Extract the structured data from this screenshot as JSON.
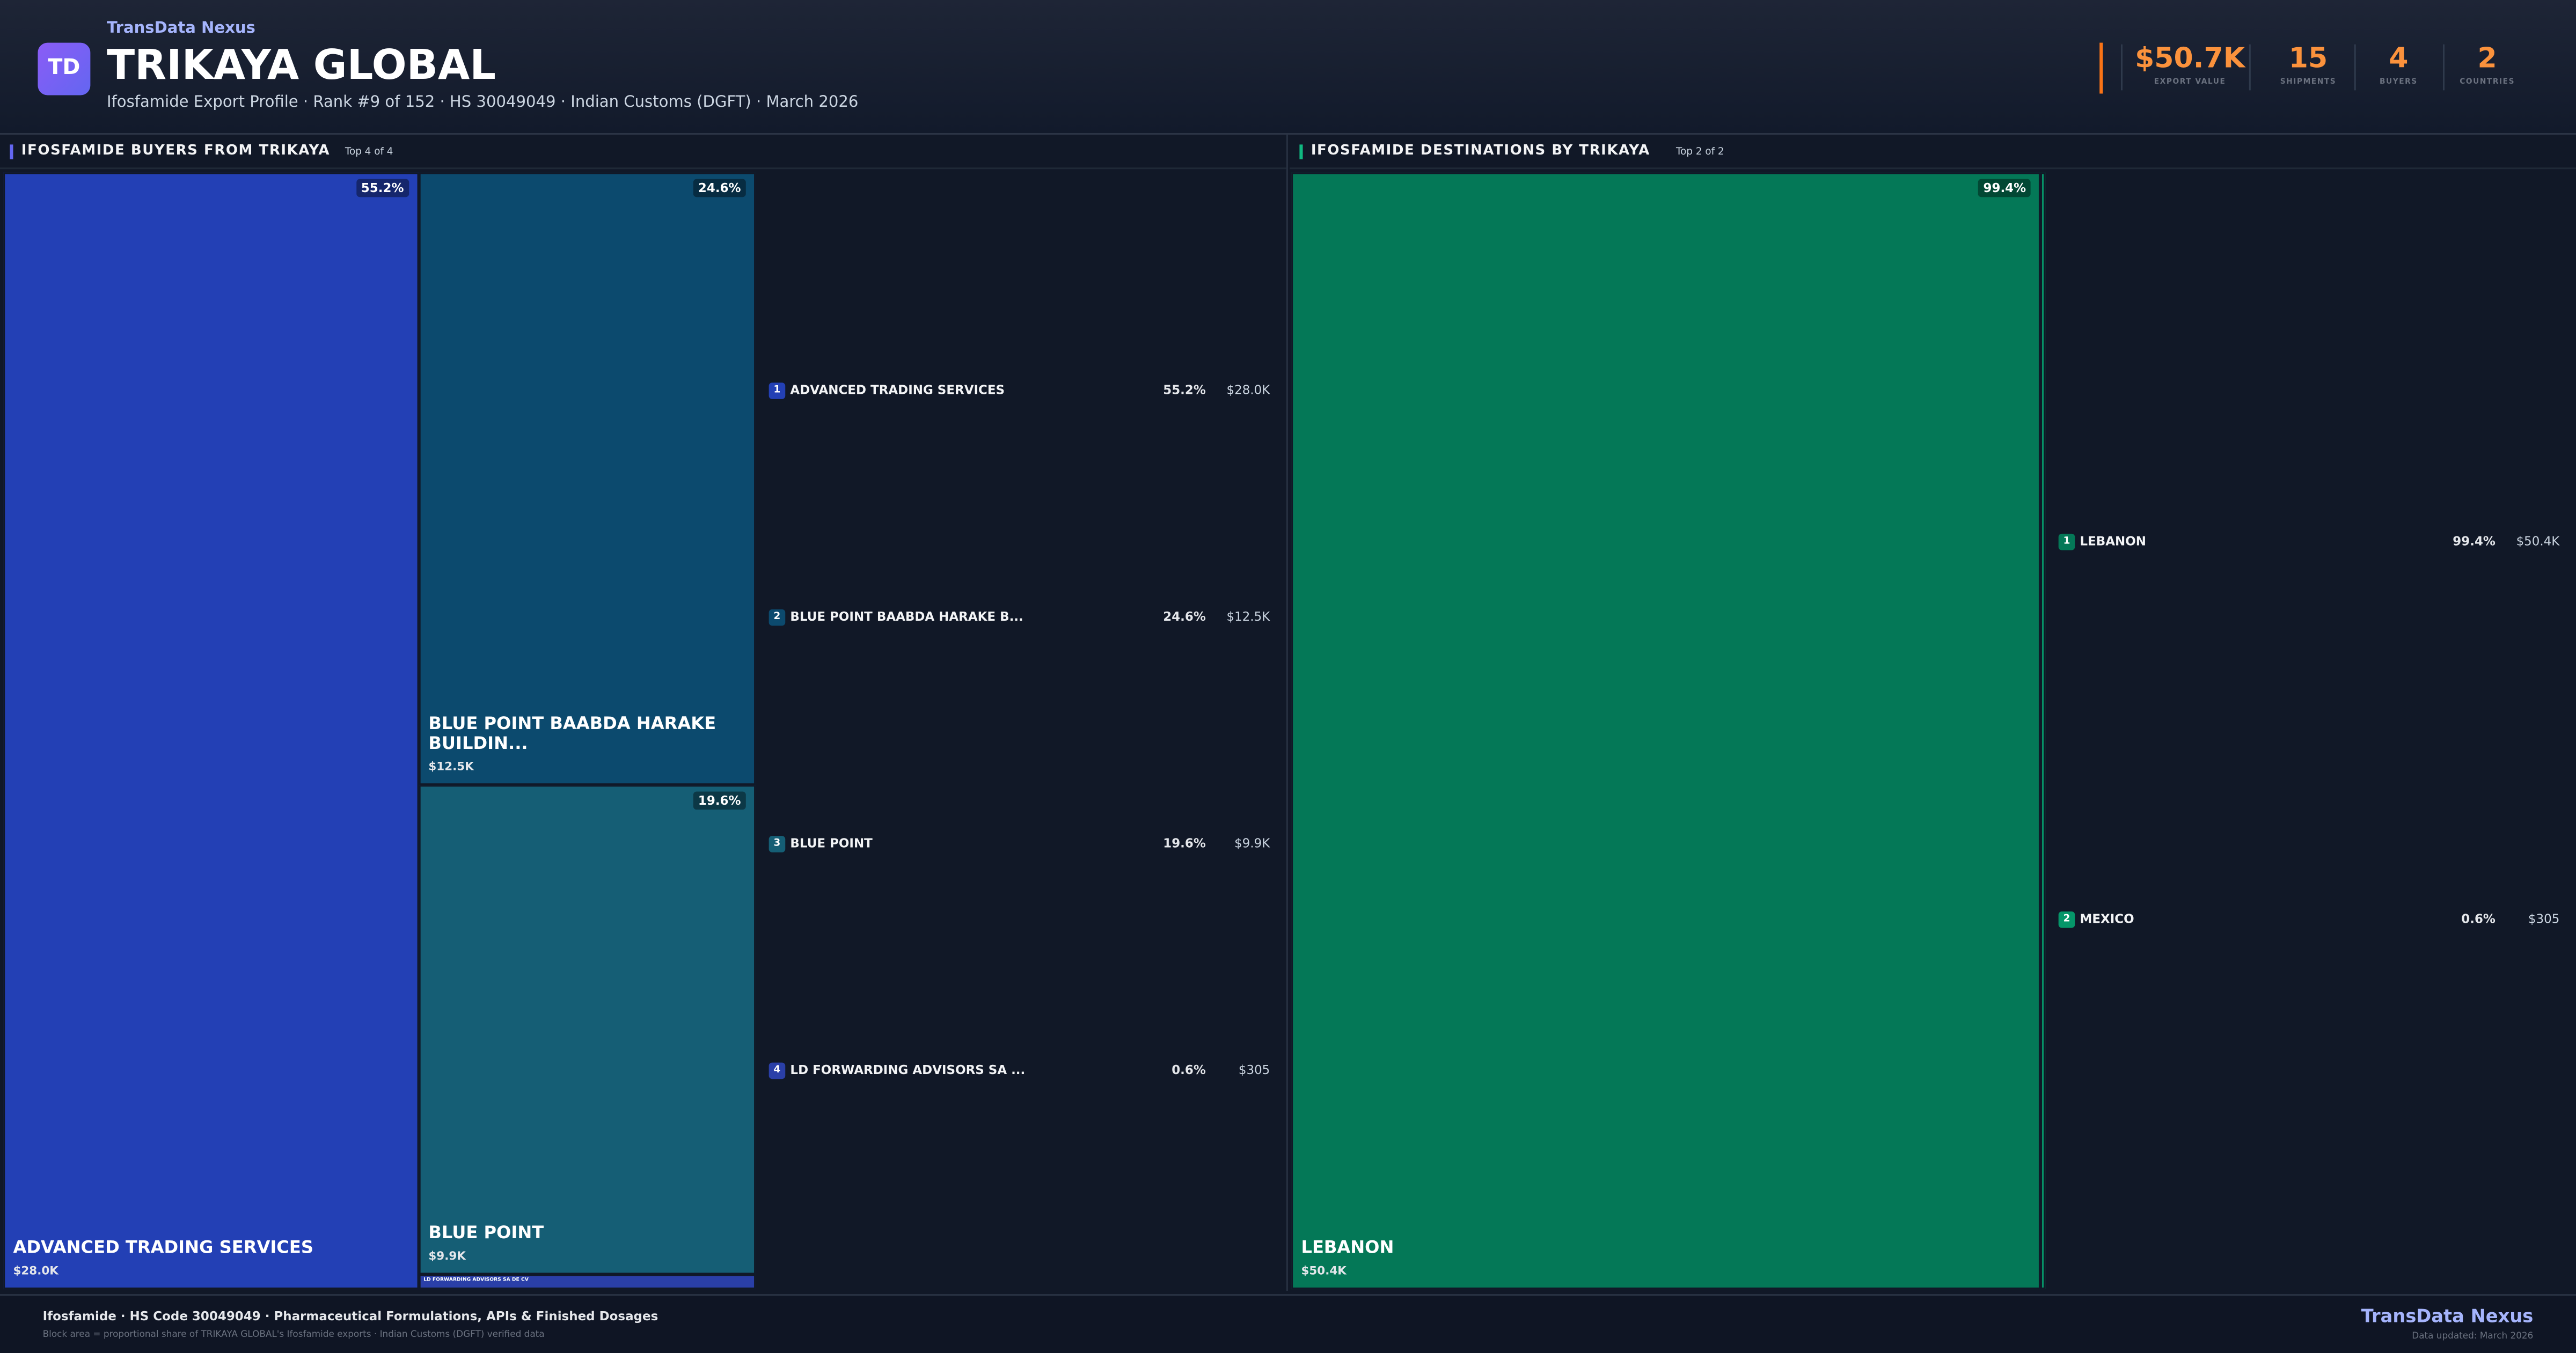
{
  "header": {
    "brand": "TransData Nexus",
    "logo": "TD",
    "title": "TRIKAYA GLOBAL",
    "subtitle": "Ifosfamide Export Profile · Rank #9 of 152 · HS 30049049 · Indian Customs (DGFT) · March 2026"
  },
  "kpis": [
    {
      "value": "$50.7K",
      "label": "EXPORT VALUE"
    },
    {
      "value": "15",
      "label": "SHIPMENTS"
    },
    {
      "value": "4",
      "label": "BUYERS"
    },
    {
      "value": "2",
      "label": "COUNTRIES"
    }
  ],
  "panels": [
    {
      "title": "IFOSFAMIDE BUYERS FROM TRIKAYA",
      "badge": "Top 4 of 4",
      "accent": "#6366f1",
      "items": [
        {
          "rank": 1,
          "block_label": "ADVANCED TRADING SERVICES",
          "list_label": "ADVANCED TRADING SERVICES",
          "share": 55.2,
          "share_label": "55.2%",
          "value_label": "$28.0K",
          "color": "#2340b5"
        },
        {
          "rank": 2,
          "block_label": "BLUE POINT BAABDA HARAKE BUILDIN...",
          "list_label": "BLUE POINT BAABDA HARAKE B...",
          "share": 24.6,
          "share_label": "24.6%",
          "value_label": "$12.5K",
          "color": "#0c4a6e"
        },
        {
          "rank": 3,
          "block_label": "BLUE POINT",
          "list_label": "BLUE POINT",
          "share": 19.6,
          "share_label": "19.6%",
          "value_label": "$9.9K",
          "color": "#155e75"
        },
        {
          "rank": 4,
          "block_label": "LD FORWARDING ADVISORS SA DE CV",
          "list_label": "LD FORWARDING ADVISORS SA ...",
          "share": 0.6,
          "share_label": "0.6%",
          "value_label": "$305",
          "color": "#2a3fa8"
        }
      ]
    },
    {
      "title": "IFOSFAMIDE DESTINATIONS BY TRIKAYA",
      "badge": "Top 2 of 2",
      "accent": "#10b981",
      "items": [
        {
          "rank": 1,
          "block_label": "LEBANON",
          "list_label": "LEBANON",
          "share": 99.4,
          "share_label": "99.4%",
          "value_label": "$50.4K",
          "color": "#047857"
        },
        {
          "rank": 2,
          "list_label": "MEXICO",
          "share": 0.6,
          "share_label": "0.6%",
          "value_label": "$305",
          "color": "#059669"
        }
      ]
    }
  ],
  "footer": {
    "title": "Ifosfamide · HS Code 30049049 · Pharmaceutical Formulations, APIs & Finished Dosages",
    "note": "Block area = proportional share of TRIKAYA GLOBAL's Ifosfamide exports · Indian Customs (DGFT) verified data",
    "brand": "TransData Nexus",
    "updated": "Data updated: March 2026"
  }
}
